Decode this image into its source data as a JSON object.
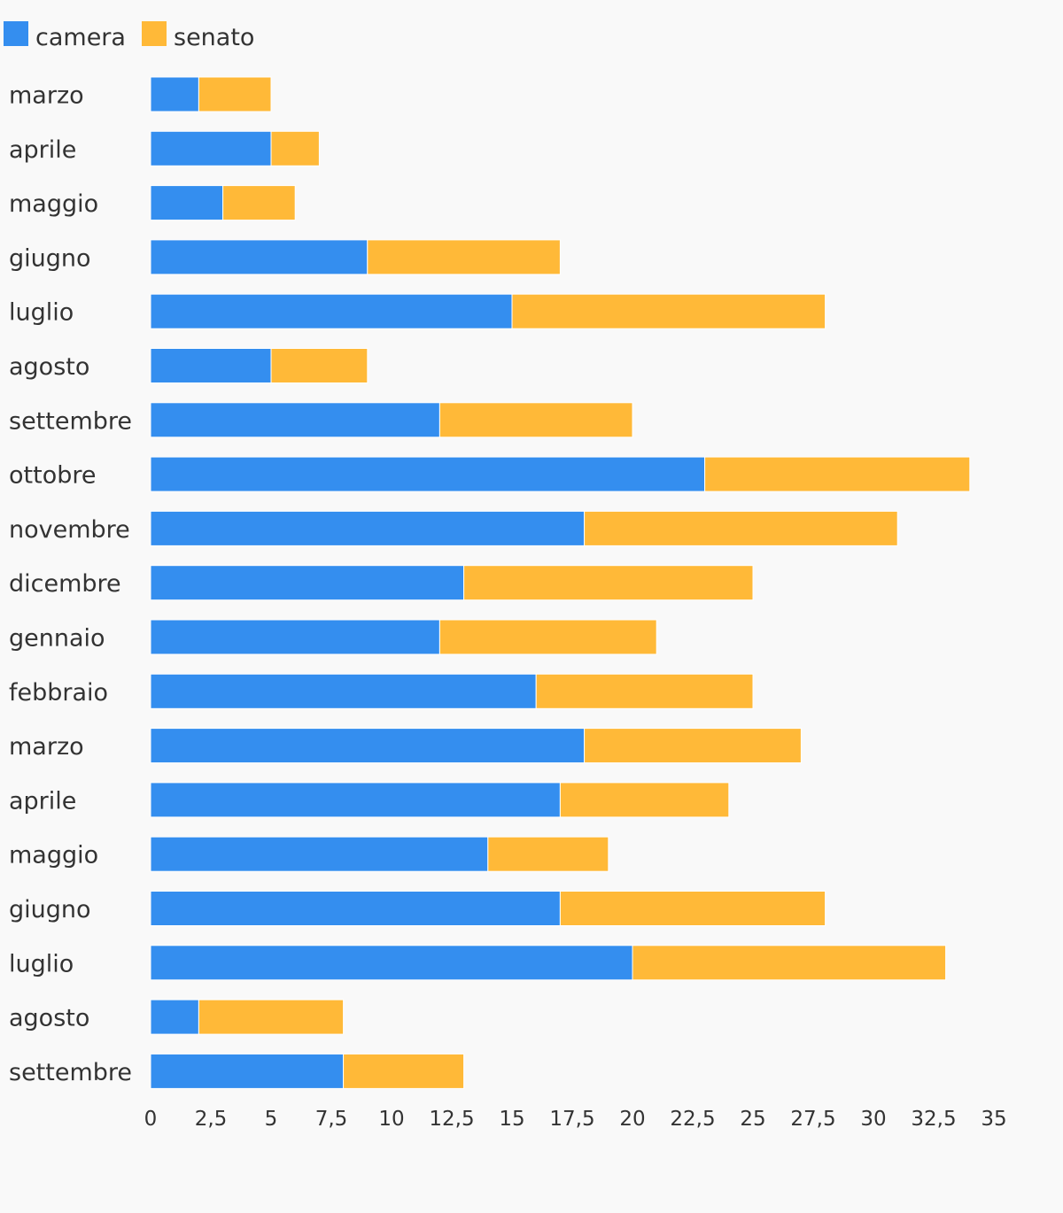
{
  "chart_data": {
    "type": "bar",
    "orientation": "horizontal",
    "stacked": true,
    "categories": [
      "marzo",
      "aprile",
      "maggio",
      "giugno",
      "luglio",
      "agosto",
      "settembre",
      "ottobre",
      "novembre",
      "dicembre",
      "gennaio",
      "febbraio",
      "marzo",
      "aprile",
      "maggio",
      "giugno",
      "luglio",
      "agosto",
      "settembre"
    ],
    "series": [
      {
        "name": "camera",
        "color": "#348eef",
        "values": [
          2,
          5,
          3,
          9,
          15,
          5,
          12,
          23,
          18,
          13,
          12,
          16,
          18,
          17,
          14,
          17,
          20,
          2,
          8
        ]
      },
      {
        "name": "senato",
        "color": "#ffb938",
        "values": [
          3,
          2,
          3,
          8,
          13,
          4,
          8,
          11,
          13,
          12,
          9,
          9,
          9,
          7,
          5,
          11,
          13,
          6,
          5
        ]
      }
    ],
    "xlim": [
      0,
      35
    ],
    "x_ticks": [
      "0",
      "2,5",
      "5",
      "7,5",
      "10",
      "12,5",
      "15",
      "17,5",
      "20",
      "22,5",
      "25",
      "27,5",
      "30",
      "32,5",
      "35"
    ],
    "x_tick_values": [
      0,
      2.5,
      5,
      7.5,
      10,
      12.5,
      15,
      17.5,
      20,
      22.5,
      25,
      27.5,
      30,
      32.5,
      35
    ],
    "legend_position": "top-left",
    "grid": false
  }
}
